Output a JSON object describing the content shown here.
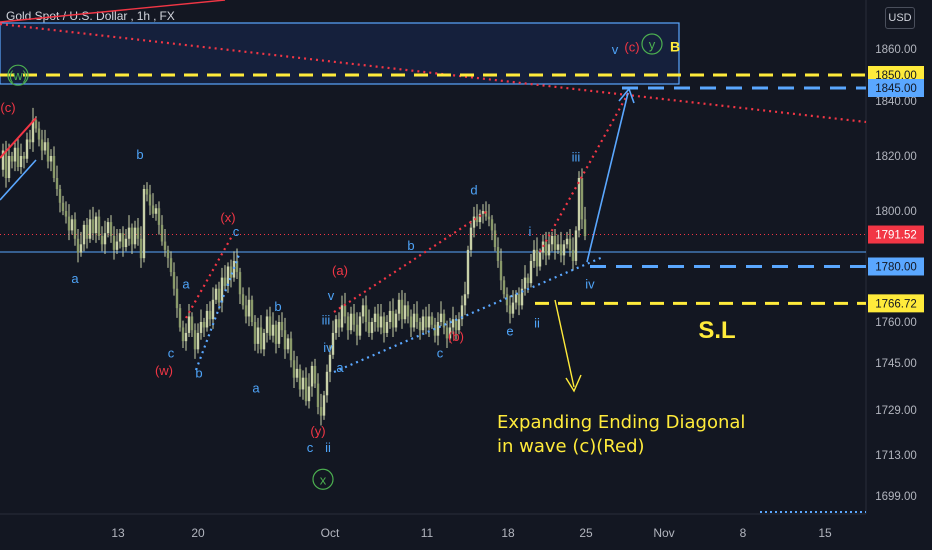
{
  "title": {
    "symbol_name": "Gold Spot / U.S. Dollar",
    "interval": "1h",
    "exchange": "FX"
  },
  "currency_button": "USD",
  "colors": {
    "background": "#131722",
    "candle": "#c8d0a8",
    "white": "#e8e8e8",
    "red": "#f23645",
    "blue": "#5aa7ff",
    "green": "#4caf50",
    "yellow": "#ffeb3b",
    "axis_text": "#b2b5be",
    "wave_label_blue": "#4ea3f7",
    "wave_label_red": "#f23645"
  },
  "chart_data": {
    "type": "candlestick",
    "instrument": "Gold Spot / U.S. Dollar",
    "timeframe": "1h",
    "y_ticks": [
      1860.0,
      1840.0,
      1820.0,
      1800.0,
      1760.0,
      1745.0,
      1729.0,
      1713.0,
      1699.0
    ],
    "x_ticks": [
      "13",
      "20",
      "Oct",
      "11",
      "18",
      "25",
      "Nov",
      "8",
      "15"
    ],
    "price_tags": [
      {
        "label": "1850.00",
        "value": 1850.0,
        "style": "yellow"
      },
      {
        "label": "1845.00",
        "value": 1845.0,
        "style": "blue"
      },
      {
        "label": "1791.52",
        "value": 1791.52,
        "style": "red"
      },
      {
        "label": "1780.00",
        "value": 1780.0,
        "style": "blue"
      },
      {
        "label": "1766.72",
        "value": 1766.72,
        "style": "yellow"
      }
    ],
    "current_price": 1791.52,
    "levels": [
      {
        "name": "target-zone-top-line",
        "value": 1850.0,
        "style": "yellow-dashed"
      },
      {
        "name": "target-line",
        "value": 1845.0,
        "style": "blue-dashed"
      },
      {
        "name": "support-line",
        "value": 1780.0,
        "style": "blue-dashed"
      },
      {
        "name": "stop-loss-line",
        "value": 1766.72,
        "style": "yellow-dashed"
      },
      {
        "name": "current-price-line",
        "value": 1791.52,
        "style": "red-dotted"
      }
    ],
    "price_path": [
      [
        0,
        1815
      ],
      [
        3,
        1822
      ],
      [
        6,
        1812
      ],
      [
        9,
        1820
      ],
      [
        12,
        1818
      ],
      [
        15,
        1823
      ],
      [
        18,
        1816
      ],
      [
        21,
        1820
      ],
      [
        24,
        1819
      ],
      [
        27,
        1826
      ],
      [
        30,
        1825
      ],
      [
        33,
        1833
      ],
      [
        36,
        1830
      ],
      [
        39,
        1826
      ],
      [
        42,
        1822
      ],
      [
        45,
        1825
      ],
      [
        48,
        1818
      ],
      [
        51,
        1820
      ],
      [
        54,
        1812
      ],
      [
        57,
        1808
      ],
      [
        60,
        1803
      ],
      [
        63,
        1800
      ],
      [
        66,
        1798
      ],
      [
        69,
        1793
      ],
      [
        72,
        1797
      ],
      [
        75,
        1790
      ],
      [
        78,
        1785
      ],
      [
        81,
        1788
      ],
      [
        84,
        1795
      ],
      [
        87,
        1790
      ],
      [
        90,
        1797
      ],
      [
        93,
        1792
      ],
      [
        96,
        1798
      ],
      [
        99,
        1791
      ],
      [
        102,
        1788
      ],
      [
        105,
        1792
      ],
      [
        108,
        1796
      ],
      [
        111,
        1791
      ],
      [
        114,
        1786
      ],
      [
        117,
        1789
      ],
      [
        120,
        1792
      ],
      [
        123,
        1787
      ],
      [
        126,
        1790
      ],
      [
        129,
        1794
      ],
      [
        132,
        1788
      ],
      [
        135,
        1794
      ],
      [
        138,
        1790
      ],
      [
        141,
        1783
      ],
      [
        144,
        1808
      ],
      [
        147,
        1806
      ],
      [
        150,
        1802
      ],
      [
        153,
        1799
      ],
      [
        156,
        1801
      ],
      [
        159,
        1795
      ],
      [
        162,
        1789
      ],
      [
        165,
        1786
      ],
      [
        168,
        1783
      ],
      [
        171,
        1778
      ],
      [
        174,
        1772
      ],
      [
        177,
        1765
      ],
      [
        180,
        1758
      ],
      [
        183,
        1753
      ],
      [
        186,
        1756
      ],
      [
        189,
        1762
      ],
      [
        192,
        1757
      ],
      [
        195,
        1750
      ],
      [
        198,
        1756
      ],
      [
        201,
        1760
      ],
      [
        204,
        1758
      ],
      [
        207,
        1764
      ],
      [
        210,
        1761
      ],
      [
        213,
        1768
      ],
      [
        216,
        1772
      ],
      [
        219,
        1767
      ],
      [
        222,
        1776
      ],
      [
        225,
        1773
      ],
      [
        228,
        1780
      ],
      [
        231,
        1776
      ],
      [
        234,
        1782
      ],
      [
        237,
        1778
      ],
      [
        240,
        1770
      ],
      [
        243,
        1766
      ],
      [
        246,
        1762
      ],
      [
        249,
        1768
      ],
      [
        252,
        1760
      ],
      [
        255,
        1752
      ],
      [
        258,
        1758
      ],
      [
        261,
        1750
      ],
      [
        264,
        1756
      ],
      [
        267,
        1762
      ],
      [
        270,
        1755
      ],
      [
        273,
        1759
      ],
      [
        276,
        1752
      ],
      [
        279,
        1760
      ],
      [
        282,
        1757
      ],
      [
        285,
        1750
      ],
      [
        288,
        1754
      ],
      [
        291,
        1746
      ],
      [
        294,
        1740
      ],
      [
        297,
        1743
      ],
      [
        300,
        1736
      ],
      [
        303,
        1740
      ],
      [
        306,
        1732
      ],
      [
        309,
        1737
      ],
      [
        312,
        1744
      ],
      [
        315,
        1738
      ],
      [
        318,
        1730
      ],
      [
        321,
        1727
      ],
      [
        324,
        1734
      ],
      [
        327,
        1742
      ],
      [
        330,
        1748
      ],
      [
        333,
        1756
      ],
      [
        336,
        1761
      ],
      [
        339,
        1758
      ],
      [
        342,
        1766
      ],
      [
        345,
        1762
      ],
      [
        348,
        1757
      ],
      [
        351,
        1763
      ],
      [
        354,
        1759
      ],
      [
        357,
        1755
      ],
      [
        360,
        1762
      ],
      [
        363,
        1766
      ],
      [
        366,
        1760
      ],
      [
        369,
        1756
      ],
      [
        372,
        1760
      ],
      [
        375,
        1763
      ],
      [
        378,
        1758
      ],
      [
        381,
        1762
      ],
      [
        384,
        1756
      ],
      [
        387,
        1760
      ],
      [
        390,
        1764
      ],
      [
        393,
        1758
      ],
      [
        396,
        1763
      ],
      [
        399,
        1768
      ],
      [
        402,
        1761
      ],
      [
        405,
        1766
      ],
      [
        408,
        1762
      ],
      [
        411,
        1758
      ],
      [
        414,
        1763
      ],
      [
        417,
        1760
      ],
      [
        420,
        1757
      ],
      [
        423,
        1762
      ],
      [
        426,
        1758
      ],
      [
        429,
        1762
      ],
      [
        432,
        1759
      ],
      [
        435,
        1755
      ],
      [
        438,
        1760
      ],
      [
        441,
        1763
      ],
      [
        444,
        1758
      ],
      [
        447,
        1754
      ],
      [
        450,
        1758
      ],
      [
        453,
        1761
      ],
      [
        456,
        1757
      ],
      [
        459,
        1761
      ],
      [
        462,
        1766
      ],
      [
        465,
        1770
      ],
      [
        468,
        1786
      ],
      [
        471,
        1794
      ],
      [
        474,
        1798
      ],
      [
        477,
        1796
      ],
      [
        480,
        1799
      ],
      [
        483,
        1800
      ],
      [
        486,
        1798
      ],
      [
        489,
        1797
      ],
      [
        492,
        1793
      ],
      [
        495,
        1787
      ],
      [
        498,
        1782
      ],
      [
        501,
        1775
      ],
      [
        504,
        1770
      ],
      [
        507,
        1766
      ],
      [
        510,
        1763
      ],
      [
        513,
        1767
      ],
      [
        516,
        1770
      ],
      [
        519,
        1766
      ],
      [
        522,
        1772
      ],
      [
        525,
        1776
      ],
      [
        528,
        1774
      ],
      [
        531,
        1782
      ],
      [
        534,
        1786
      ],
      [
        537,
        1780
      ],
      [
        540,
        1785
      ],
      [
        543,
        1789
      ],
      [
        546,
        1784
      ],
      [
        549,
        1788
      ],
      [
        552,
        1791
      ],
      [
        555,
        1786
      ],
      [
        558,
        1788
      ],
      [
        561,
        1784
      ],
      [
        564,
        1788
      ],
      [
        567,
        1790
      ],
      [
        570,
        1786
      ],
      [
        573,
        1782
      ],
      [
        576,
        1793
      ],
      [
        579,
        1812
      ],
      [
        582,
        1797
      ],
      [
        585,
        1791
      ]
    ],
    "wave_labels": [
      {
        "text": "(c)",
        "color": "red",
        "price": 1836,
        "time": 8
      },
      {
        "text": "b",
        "color": "blue",
        "price": 1819,
        "time": 140
      },
      {
        "text": "a",
        "color": "blue",
        "price": 1774,
        "time": 75
      },
      {
        "text": "(x)",
        "color": "red",
        "price": 1796,
        "time": 228
      },
      {
        "text": "c",
        "color": "blue",
        "price": 1791,
        "time": 236
      },
      {
        "text": "a",
        "color": "blue",
        "price": 1772,
        "time": 186
      },
      {
        "text": "b",
        "color": "blue",
        "price": 1764,
        "time": 278
      },
      {
        "text": "c",
        "color": "blue",
        "price": 1747,
        "time": 171
      },
      {
        "text": "(w)",
        "color": "red",
        "price": 1741,
        "time": 164
      },
      {
        "text": "b",
        "color": "blue",
        "price": 1740,
        "time": 199
      },
      {
        "text": "a",
        "color": "blue",
        "price": 1735,
        "time": 256
      },
      {
        "text": "(y)",
        "color": "red",
        "price": 1720,
        "time": 318
      },
      {
        "text": "c",
        "color": "blue",
        "price": 1714,
        "time": 310
      },
      {
        "text": "ii",
        "color": "blue",
        "price": 1714,
        "time": 328
      },
      {
        "text": "x",
        "color": "green",
        "price": 1703,
        "time": 323
      },
      {
        "text": "(a)",
        "color": "red",
        "price": 1777,
        "time": 340
      },
      {
        "text": "v",
        "color": "blue",
        "price": 1768,
        "time": 331
      },
      {
        "text": "iii",
        "color": "blue",
        "price": 1759,
        "time": 326
      },
      {
        "text": "iv",
        "color": "blue",
        "price": 1749,
        "time": 328
      },
      {
        "text": "a",
        "color": "blue",
        "price": 1742,
        "time": 340
      },
      {
        "text": "b",
        "color": "blue",
        "price": 1786,
        "time": 411
      },
      {
        "text": "c",
        "color": "blue",
        "price": 1747,
        "time": 440
      },
      {
        "text": "(b)",
        "color": "red",
        "price": 1753,
        "time": 456
      },
      {
        "text": "d",
        "color": "blue",
        "price": 1806,
        "time": 474
      },
      {
        "text": "e",
        "color": "blue",
        "price": 1755,
        "time": 510
      },
      {
        "text": "i",
        "color": "blue",
        "price": 1791,
        "time": 530
      },
      {
        "text": "ii",
        "color": "blue",
        "price": 1758,
        "time": 537
      },
      {
        "text": "iii",
        "color": "blue",
        "price": 1818,
        "time": 576
      },
      {
        "text": "iv",
        "color": "blue",
        "price": 1772,
        "time": 590
      },
      {
        "text": "v",
        "color": "blue",
        "price": 1858,
        "time": 615
      },
      {
        "text": "(c)",
        "color": "red",
        "price": 1859,
        "time": 632
      },
      {
        "text": "y",
        "color": "green",
        "price": 1860,
        "time": 652
      },
      {
        "text": "B",
        "color": "yellow",
        "price": 1861,
        "time": 675
      },
      {
        "text": "(w)",
        "color": "green",
        "price": 1848,
        "time": 18
      }
    ],
    "annotation": {
      "line1": "Expanding Ending Diagonal",
      "line2": "in wave (c)(Red)"
    },
    "sl_label": "S.L"
  }
}
